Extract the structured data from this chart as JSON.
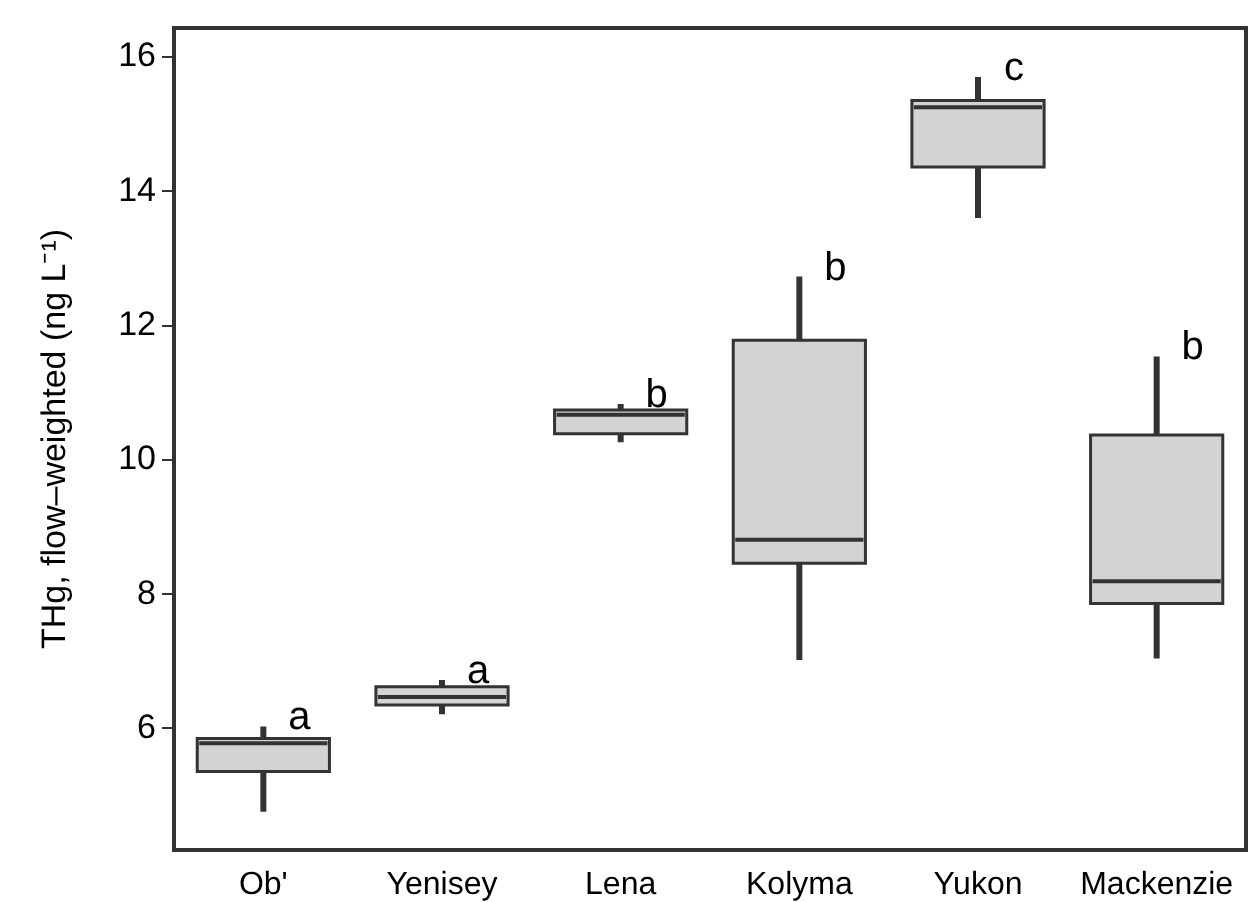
{
  "chart_data": {
    "type": "box",
    "ylabel": "THg, flow–weighted (ng L⁻¹)",
    "categories": [
      "Ob'",
      "Yenisey",
      "Lena",
      "Kolyma",
      "Yukon",
      "Mackenzie"
    ],
    "boxes": [
      {
        "low": 4.76,
        "q1": 5.36,
        "median": 5.78,
        "q3": 5.85,
        "high": 6.03
      },
      {
        "low": 6.21,
        "q1": 6.35,
        "median": 6.47,
        "q3": 6.62,
        "high": 6.72
      },
      {
        "low": 10.26,
        "q1": 10.39,
        "median": 10.67,
        "q3": 10.74,
        "high": 10.83
      },
      {
        "low": 7.02,
        "q1": 8.46,
        "median": 8.81,
        "q3": 11.78,
        "high": 12.73
      },
      {
        "low": 13.6,
        "q1": 14.36,
        "median": 15.25,
        "q3": 15.35,
        "high": 15.7
      },
      {
        "low": 7.04,
        "q1": 7.86,
        "median": 8.19,
        "q3": 10.37,
        "high": 11.54
      }
    ],
    "color": "#d3d3d3",
    "ylim": [
      4.19,
      16.43
    ],
    "yticks": [
      6,
      8,
      10,
      12,
      14,
      16
    ],
    "grid": false,
    "legend": false,
    "annotations": [
      "a",
      "a",
      "b",
      "b",
      "c",
      "b"
    ]
  }
}
